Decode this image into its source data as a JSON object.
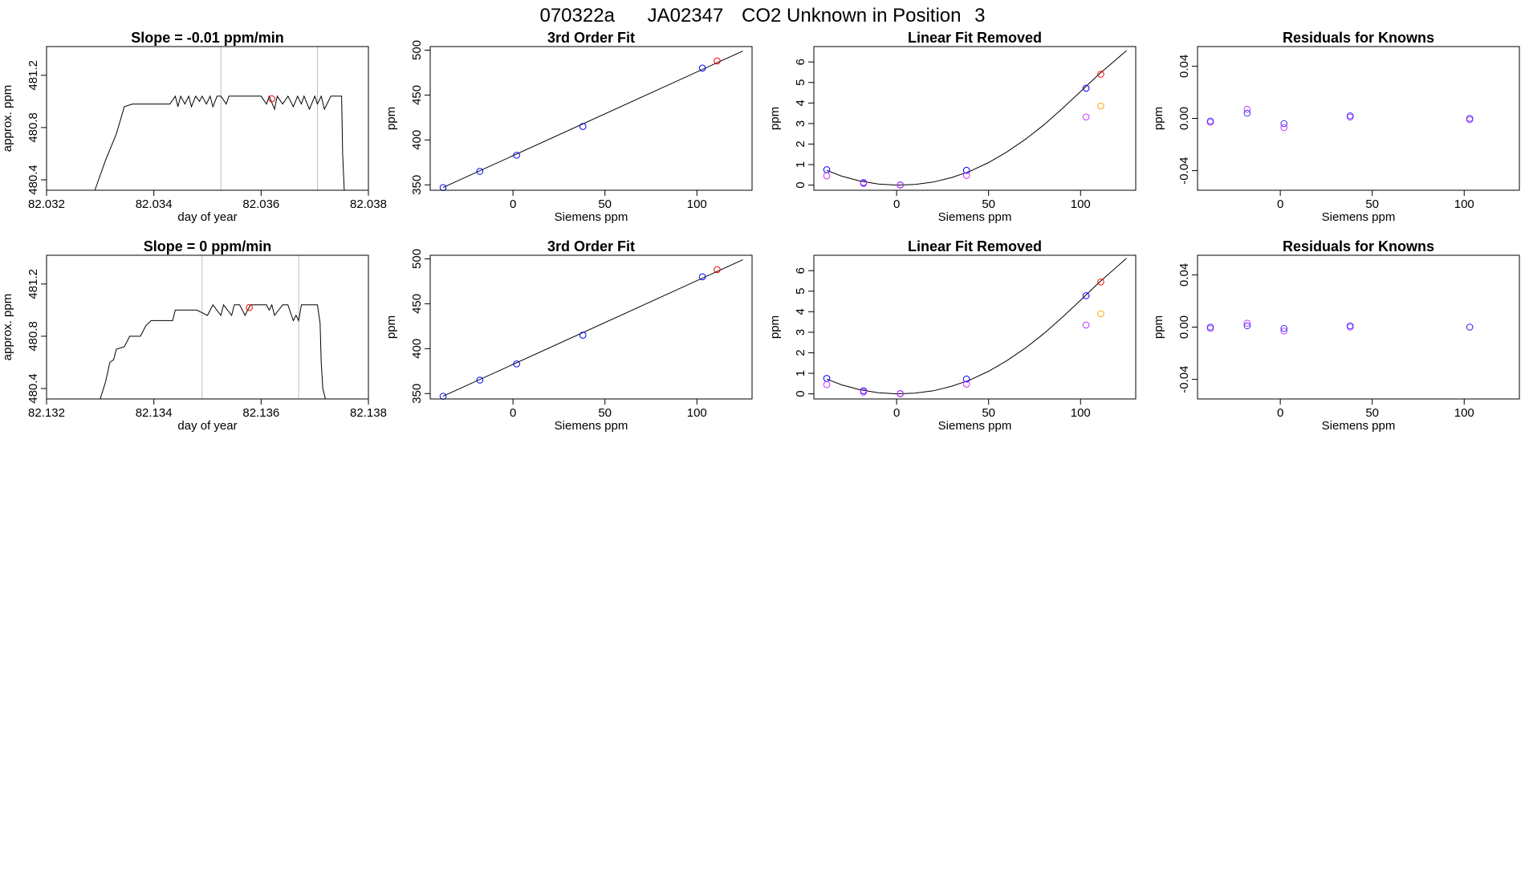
{
  "page_title": {
    "run": "070322a",
    "tank": "JA02347",
    "description": "CO2 Unknown in Position",
    "position": "3"
  },
  "colors": {
    "line": "#000000",
    "standard_points": "#0000ff",
    "unknown_point": "#ff0000",
    "first_residual_points": "#cc33ff",
    "second_residual_points": "#3333ff",
    "linear_removed_points": "#cc33ff",
    "unknown_linear_removed": "#ffa500",
    "vline": "#bebebe"
  },
  "chart_data": [
    {
      "id": "r1-timeseries",
      "type": "line",
      "title": "Slope =  -0.01  ppm/min",
      "xlabel": "day of year",
      "ylabel": "approx. ppm",
      "xlim": [
        82.032,
        82.038
      ],
      "ylim": [
        480.32,
        481.42
      ],
      "xticks": [
        "82.032",
        "82.034",
        "82.036",
        "82.038"
      ],
      "yticks": [
        "480.4",
        "480.8",
        "481.2"
      ],
      "vlines": [
        82.03525,
        82.03705
      ],
      "series": [
        {
          "type": "line",
          "x": [
            82.0329,
            82.0331,
            82.0333,
            82.03345,
            82.0336,
            82.03375,
            82.0338,
            82.0343,
            82.0344,
            82.03445,
            82.0345,
            82.03458,
            82.03465,
            82.0347,
            82.03478,
            82.03485,
            82.0349,
            82.03498,
            82.03505,
            82.0351,
            82.03518,
            82.03525,
            82.03535,
            82.0354,
            82.0355,
            82.036,
            82.0361,
            82.03615,
            82.03625,
            82.0363,
            82.0364,
            82.0365,
            82.0366,
            82.03668,
            82.03675,
            82.0368,
            82.0369,
            82.037,
            82.03705,
            82.03712,
            82.03718,
            82.0373,
            82.03745,
            82.0375,
            82.03752,
            82.03755
          ],
          "y": [
            480.32,
            480.55,
            480.75,
            480.96,
            480.98,
            480.98,
            480.98,
            480.98,
            481.04,
            480.96,
            481.04,
            480.98,
            481.04,
            480.96,
            481.04,
            481.0,
            481.04,
            480.98,
            481.04,
            480.96,
            481.04,
            481.04,
            480.98,
            481.04,
            481.04,
            481.04,
            480.98,
            481.04,
            480.94,
            481.04,
            480.98,
            481.04,
            480.96,
            481.04,
            480.98,
            481.04,
            480.94,
            481.04,
            480.98,
            481.04,
            480.94,
            481.04,
            481.04,
            481.04,
            480.6,
            480.32
          ]
        },
        {
          "type": "points",
          "color": "#ff0000",
          "x": [
            82.0362
          ],
          "y": [
            481.02
          ]
        }
      ]
    },
    {
      "id": "r1-thirdorder",
      "type": "scatter",
      "title": "3rd Order Fit",
      "xlabel": "Siemens ppm",
      "ylabel": "ppm",
      "xlim": [
        -45,
        130
      ],
      "ylim": [
        344,
        504
      ],
      "xticks": [
        0,
        50,
        100
      ],
      "yticks": [
        350,
        400,
        450,
        500
      ],
      "series": [
        {
          "type": "line",
          "x": [
            -38,
            125
          ],
          "y": [
            347,
            499
          ]
        },
        {
          "type": "points",
          "color": "#0000ff",
          "x": [
            -38,
            -18,
            2,
            38,
            103
          ],
          "y": [
            347,
            365,
            383,
            415,
            480
          ]
        },
        {
          "type": "points",
          "color": "#ff0000",
          "x": [
            111
          ],
          "y": [
            488
          ]
        }
      ]
    },
    {
      "id": "r1-linearremoved",
      "type": "scatter",
      "title": "Linear Fit Removed",
      "xlabel": "Siemens ppm",
      "ylabel": "ppm",
      "xlim": [
        -45,
        130
      ],
      "ylim": [
        -0.25,
        6.75
      ],
      "xticks": [
        0,
        50,
        100
      ],
      "yticks": [
        0,
        1,
        2,
        3,
        4,
        5,
        6
      ],
      "series": [
        {
          "type": "line",
          "x": [
            -38,
            -30,
            -20,
            -10,
            0,
            10,
            20,
            30,
            40,
            50,
            60,
            70,
            80,
            90,
            100,
            110,
            125
          ],
          "y": [
            0.72,
            0.44,
            0.2,
            0.05,
            0.0,
            0.03,
            0.15,
            0.37,
            0.68,
            1.1,
            1.62,
            2.23,
            2.93,
            3.72,
            4.56,
            5.4,
            6.55
          ]
        },
        {
          "type": "points",
          "color": "#0000ff",
          "x": [
            -38,
            -18,
            2,
            38,
            103
          ],
          "y": [
            0.75,
            0.12,
            0.01,
            0.72,
            4.72
          ]
        },
        {
          "type": "points",
          "color": "#cc33ff",
          "x": [
            -38,
            -18,
            2,
            38,
            103
          ],
          "y": [
            0.45,
            0.08,
            0.0,
            0.47,
            3.32
          ]
        },
        {
          "type": "points",
          "color": "#ff0000",
          "x": [
            111
          ],
          "y": [
            5.4
          ]
        },
        {
          "type": "points",
          "color": "#ffa500",
          "x": [
            111
          ],
          "y": [
            3.85
          ]
        }
      ]
    },
    {
      "id": "r1-residuals",
      "type": "scatter",
      "title": "Residuals for Knowns",
      "xlabel": "Siemens ppm",
      "ylabel": "ppm",
      "xlim": [
        -45,
        130
      ],
      "ylim": [
        -0.055,
        0.055
      ],
      "xticks": [
        0,
        50,
        100
      ],
      "yticks": [
        "-0.04",
        "0.00",
        "0.04"
      ],
      "series": [
        {
          "type": "points",
          "color": "#cc33ff",
          "x": [
            -38,
            -18,
            2,
            38,
            103
          ],
          "y": [
            -0.003,
            0.007,
            -0.007,
            0.001,
            -0.001
          ]
        },
        {
          "type": "points",
          "color": "#3333ff",
          "x": [
            -38,
            -18,
            2,
            38,
            103
          ],
          "y": [
            -0.002,
            0.004,
            -0.004,
            0.002,
            0.0
          ]
        }
      ]
    },
    {
      "id": "r2-timeseries",
      "type": "line",
      "title": "Slope =  0  ppm/min",
      "xlabel": "day of year",
      "ylabel": "approx. ppm",
      "xlim": [
        82.132,
        82.138
      ],
      "ylim": [
        480.32,
        481.42
      ],
      "xticks": [
        "82.132",
        "82.134",
        "82.136",
        "82.138"
      ],
      "yticks": [
        "480.4",
        "480.8",
        "481.2"
      ],
      "vlines": [
        82.1349,
        82.1367
      ],
      "series": [
        {
          "type": "line",
          "x": [
            82.133,
            82.1331,
            82.13318,
            82.13325,
            82.1333,
            82.13345,
            82.13355,
            82.13375,
            82.13385,
            82.13395,
            82.1342,
            82.13435,
            82.1344,
            82.1348,
            82.135,
            82.1351,
            82.13525,
            82.1353,
            82.13545,
            82.1355,
            82.1356,
            82.1357,
            82.1358,
            82.1359,
            82.136,
            82.1361,
            82.13615,
            82.1362,
            82.13625,
            82.1364,
            82.1365,
            82.1366,
            82.13665,
            82.1367,
            82.13675,
            82.1368,
            82.1369,
            82.137,
            82.13705,
            82.1371,
            82.13712,
            82.13715,
            82.1372
          ],
          "y": [
            480.32,
            480.45,
            480.6,
            480.62,
            480.7,
            480.72,
            480.8,
            480.8,
            480.88,
            480.92,
            480.92,
            480.92,
            481.0,
            481.0,
            480.96,
            481.04,
            480.96,
            481.04,
            480.96,
            481.04,
            481.04,
            480.96,
            481.04,
            481.04,
            481.04,
            481.04,
            481.0,
            481.04,
            480.96,
            481.04,
            481.04,
            480.92,
            480.96,
            480.92,
            481.04,
            481.04,
            481.04,
            481.04,
            481.04,
            480.9,
            480.6,
            480.4,
            480.32
          ]
        },
        {
          "type": "points",
          "color": "#ff0000",
          "x": [
            82.13578
          ],
          "y": [
            481.02
          ]
        }
      ]
    },
    {
      "id": "r2-thirdorder",
      "type": "scatter",
      "title": "3rd Order Fit",
      "xlabel": "Siemens ppm",
      "ylabel": "ppm",
      "xlim": [
        -45,
        130
      ],
      "ylim": [
        344,
        504
      ],
      "xticks": [
        0,
        50,
        100
      ],
      "yticks": [
        350,
        400,
        450,
        500
      ],
      "series": [
        {
          "type": "line",
          "x": [
            -38,
            125
          ],
          "y": [
            347,
            499
          ]
        },
        {
          "type": "points",
          "color": "#0000ff",
          "x": [
            -38,
            -18,
            2,
            38,
            103
          ],
          "y": [
            347,
            365,
            383,
            415,
            480
          ]
        },
        {
          "type": "points",
          "color": "#ff0000",
          "x": [
            111
          ],
          "y": [
            488
          ]
        }
      ]
    },
    {
      "id": "r2-linearremoved",
      "type": "scatter",
      "title": "Linear Fit Removed",
      "xlabel": "Siemens ppm",
      "ylabel": "ppm",
      "xlim": [
        -45,
        130
      ],
      "ylim": [
        -0.25,
        6.75
      ],
      "xticks": [
        0,
        50,
        100
      ],
      "yticks": [
        0,
        1,
        2,
        3,
        4,
        5,
        6
      ],
      "series": [
        {
          "type": "line",
          "x": [
            -38,
            -30,
            -20,
            -10,
            0,
            10,
            20,
            30,
            40,
            50,
            60,
            70,
            80,
            90,
            100,
            110,
            125
          ],
          "y": [
            0.72,
            0.44,
            0.2,
            0.05,
            0.0,
            0.03,
            0.15,
            0.37,
            0.68,
            1.1,
            1.62,
            2.23,
            2.93,
            3.72,
            4.56,
            5.42,
            6.6
          ]
        },
        {
          "type": "points",
          "color": "#0000ff",
          "x": [
            -38,
            -18,
            2,
            38,
            103
          ],
          "y": [
            0.75,
            0.15,
            0.01,
            0.72,
            4.78
          ]
        },
        {
          "type": "points",
          "color": "#cc33ff",
          "x": [
            -38,
            -18,
            2,
            38,
            103
          ],
          "y": [
            0.45,
            0.08,
            0.0,
            0.47,
            3.35
          ]
        },
        {
          "type": "points",
          "color": "#ff0000",
          "x": [
            111
          ],
          "y": [
            5.45
          ]
        },
        {
          "type": "points",
          "color": "#ffa500",
          "x": [
            111
          ],
          "y": [
            3.9
          ]
        }
      ]
    },
    {
      "id": "r2-residuals",
      "type": "scatter",
      "title": "Residuals for Knowns",
      "xlabel": "Siemens ppm",
      "ylabel": "ppm",
      "xlim": [
        -45,
        130
      ],
      "ylim": [
        -0.055,
        0.055
      ],
      "xticks": [
        0,
        50,
        100
      ],
      "yticks": [
        "-0.04",
        "0.00",
        "0.04"
      ],
      "series": [
        {
          "type": "points",
          "color": "#cc33ff",
          "x": [
            -38,
            -18,
            2,
            38,
            103
          ],
          "y": [
            -0.001,
            0.003,
            -0.003,
            0.0,
            0.0
          ]
        },
        {
          "type": "points",
          "color": "#3333ff",
          "x": [
            -38,
            -18,
            2,
            38,
            103
          ],
          "y": [
            0.0,
            0.001,
            -0.001,
            0.001,
            0.0
          ]
        }
      ]
    }
  ]
}
